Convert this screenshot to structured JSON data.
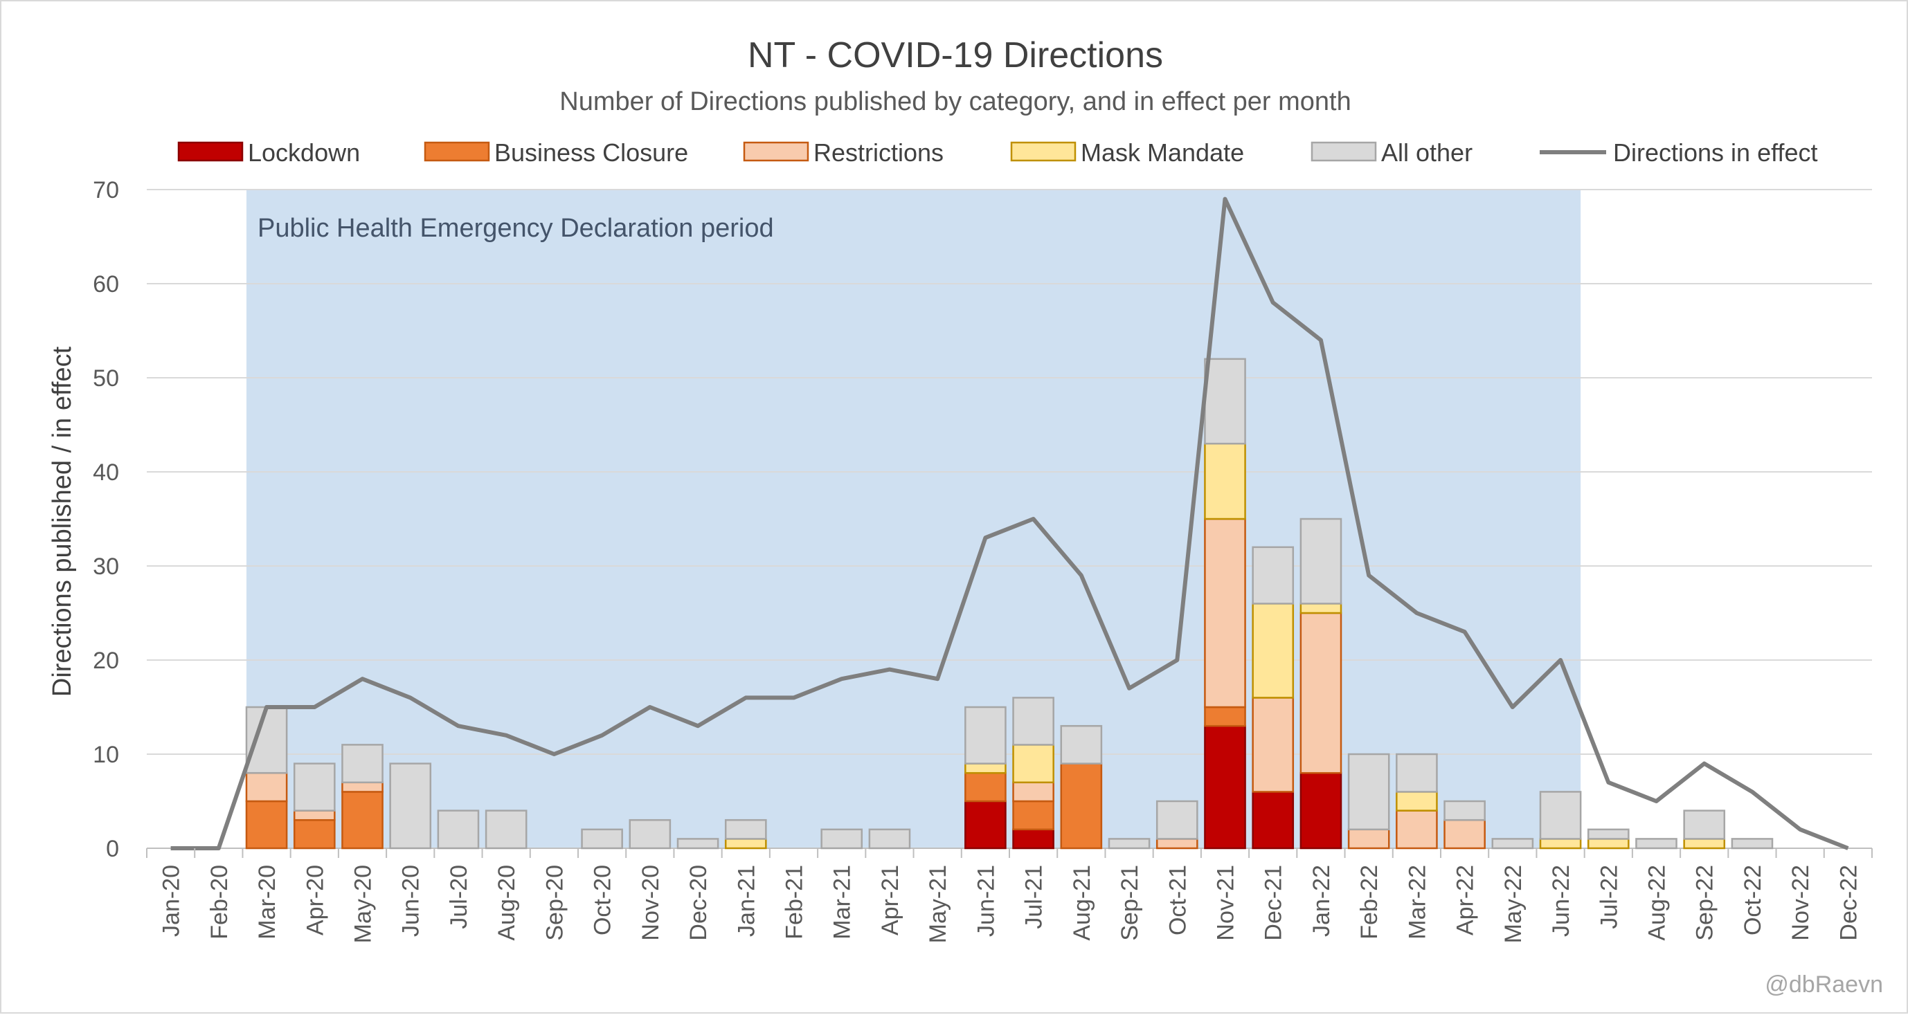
{
  "chart_data": {
    "type": "bar",
    "stacked": true,
    "title": "NT - COVID-19 Directions",
    "subtitle": "Number of Directions published by category, and in effect per month",
    "ylabel": "Directions published / in effect",
    "xlabel": "",
    "ylim": [
      0,
      70
    ],
    "yticks": [
      0,
      10,
      20,
      30,
      40,
      50,
      60,
      70
    ],
    "grid": true,
    "legend_position": "top",
    "categories": [
      "Jan-20",
      "Feb-20",
      "Mar-20",
      "Apr-20",
      "May-20",
      "Jun-20",
      "Jul-20",
      "Aug-20",
      "Sep-20",
      "Oct-20",
      "Nov-20",
      "Dec-20",
      "Jan-21",
      "Feb-21",
      "Mar-21",
      "Apr-21",
      "May-21",
      "Jun-21",
      "Jul-21",
      "Aug-21",
      "Sep-21",
      "Oct-21",
      "Nov-21",
      "Dec-21",
      "Jan-22",
      "Feb-22",
      "Mar-22",
      "Apr-22",
      "May-22",
      "Jun-22",
      "Jul-22",
      "Aug-22",
      "Sep-22",
      "Oct-22",
      "Nov-22",
      "Dec-22"
    ],
    "series": [
      {
        "name": "Lockdown",
        "color": "#c00000",
        "stroke": "#8b0000",
        "values": [
          0,
          0,
          0,
          0,
          0,
          0,
          0,
          0,
          0,
          0,
          0,
          0,
          0,
          0,
          0,
          0,
          0,
          5,
          2,
          0,
          0,
          0,
          13,
          6,
          8,
          0,
          0,
          0,
          0,
          0,
          0,
          0,
          0,
          0,
          0,
          0
        ]
      },
      {
        "name": "Business Closure",
        "color": "#ed7d31",
        "stroke": "#c55a11",
        "values": [
          0,
          0,
          5,
          3,
          6,
          0,
          0,
          0,
          0,
          0,
          0,
          0,
          0,
          0,
          0,
          0,
          0,
          3,
          3,
          9,
          0,
          0,
          2,
          0,
          0,
          0,
          0,
          0,
          0,
          0,
          0,
          0,
          0,
          0,
          0,
          0
        ]
      },
      {
        "name": "Restrictions",
        "color": "#f8cbad",
        "stroke": "#c55a11",
        "values": [
          0,
          0,
          3,
          1,
          1,
          0,
          0,
          0,
          0,
          0,
          0,
          0,
          0,
          0,
          0,
          0,
          0,
          0,
          2,
          0,
          0,
          1,
          20,
          10,
          17,
          2,
          4,
          3,
          0,
          0,
          0,
          0,
          0,
          0,
          0,
          0
        ]
      },
      {
        "name": "Mask Mandate",
        "color": "#ffe699",
        "stroke": "#bf9000",
        "values": [
          0,
          0,
          0,
          0,
          0,
          0,
          0,
          0,
          0,
          0,
          0,
          0,
          1,
          0,
          0,
          0,
          0,
          1,
          4,
          0,
          0,
          0,
          8,
          10,
          1,
          0,
          2,
          0,
          0,
          1,
          1,
          0,
          1,
          0,
          0,
          0
        ]
      },
      {
        "name": "All other",
        "color": "#d9d9d9",
        "stroke": "#a6a6a6",
        "values": [
          0,
          0,
          7,
          5,
          4,
          9,
          4,
          4,
          0,
          2,
          3,
          1,
          2,
          0,
          2,
          2,
          0,
          6,
          5,
          4,
          1,
          4,
          9,
          6,
          9,
          8,
          4,
          2,
          1,
          5,
          1,
          1,
          3,
          1,
          0,
          0
        ]
      }
    ],
    "line_series": {
      "name": "Directions in effect",
      "color": "#7f7f7f",
      "values": [
        0,
        0,
        15,
        15,
        18,
        16,
        13,
        12,
        10,
        12,
        15,
        13,
        16,
        16,
        18,
        19,
        18,
        33,
        35,
        29,
        17,
        20,
        69,
        58,
        54,
        29,
        25,
        23,
        15,
        20,
        7,
        5,
        9,
        6,
        2,
        0
      ]
    },
    "shaded_period": {
      "label": "Public Health Emergency Declaration period",
      "from": "Mar-20",
      "to": "Jun-22",
      "color": "#cfe0f1"
    },
    "credit": "@dbRaevn"
  }
}
